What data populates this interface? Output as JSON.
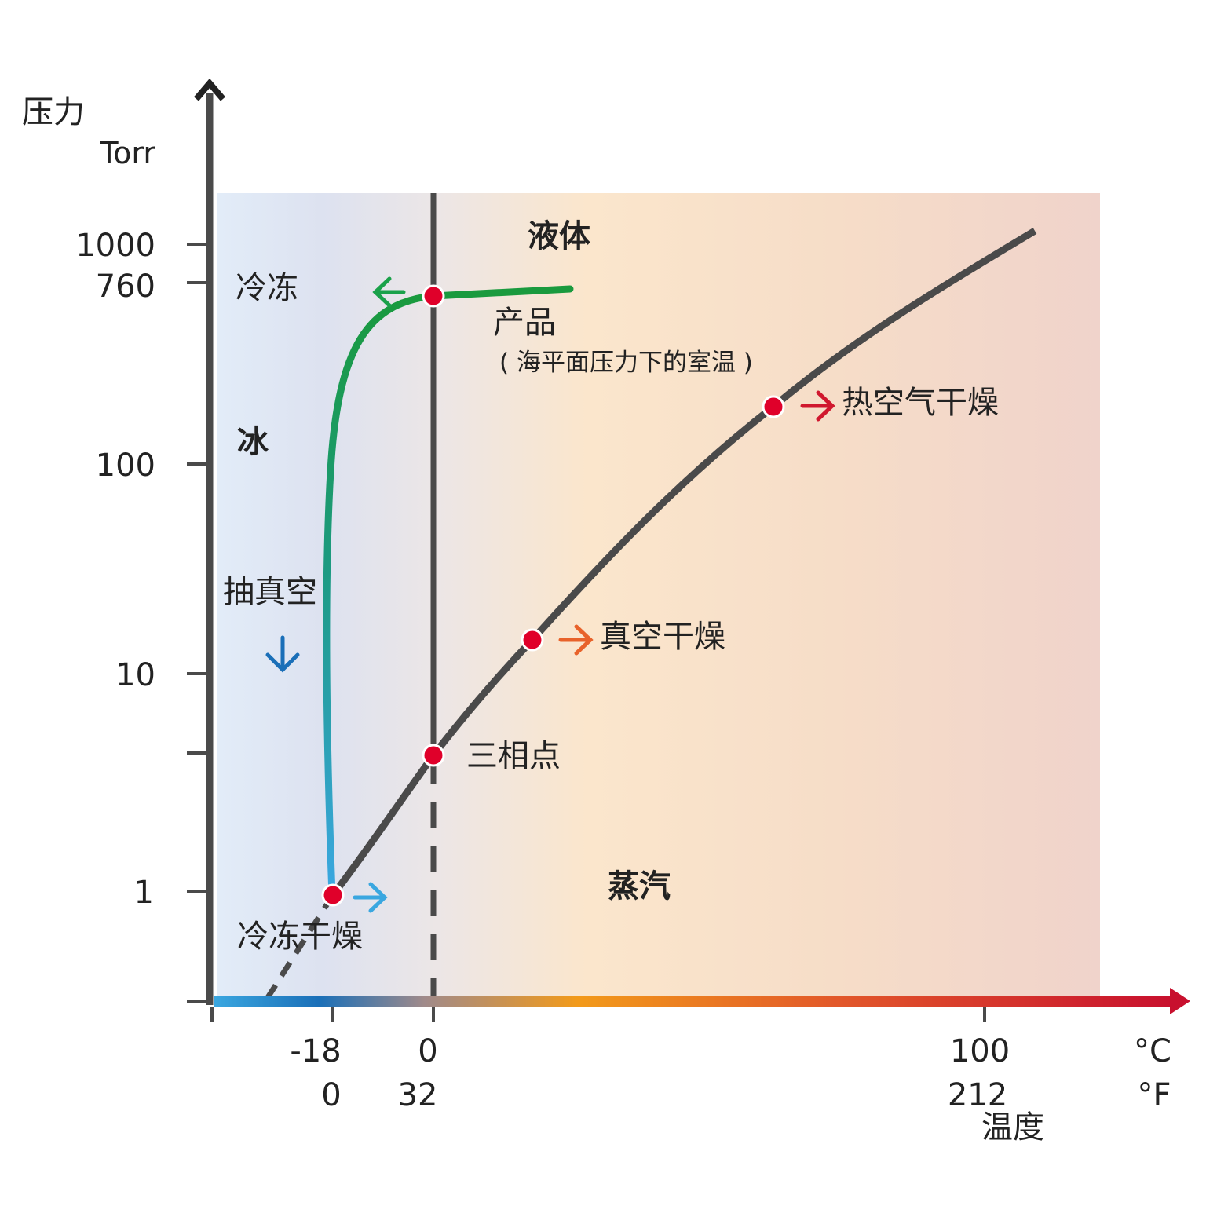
{
  "colors": {
    "axis": "#4a4a4a",
    "vapor_curve": "#4a4a4a",
    "point": "#e0002a",
    "freeze_arrow": "#1aa14a",
    "vacuum_arrow": "#1a6fb8",
    "freeze_dry_arrow": "#3aa7e0",
    "vacuum_dry_arrow": "#e8622a",
    "hot_air_arrow": "#d0182e",
    "bg_cold": "#e2ecf8",
    "bg_warm": "#fbe6cc",
    "bg_hot": "#f0d3cb",
    "temp_axis_cold": "#3aa7e0",
    "temp_axis_mid": "#f29a1a",
    "temp_axis_hot": "#c8102e"
  },
  "y_axis": {
    "title": "压力",
    "unit": "Torr",
    "scale": "log",
    "ticks": [
      "1000",
      "760",
      "100",
      "10",
      "1"
    ]
  },
  "x_axis": {
    "title": "温度",
    "unit_c": "°C",
    "unit_f": "°F",
    "ticks_c": [
      "-18",
      "0",
      "100"
    ],
    "ticks_f": [
      "0",
      "32",
      "212"
    ]
  },
  "regions": {
    "liquid": "液体",
    "ice": "冰",
    "vapor": "蒸汽"
  },
  "labels": {
    "freeze": "冷冻",
    "product": "产品",
    "product_note": "( 海平面压力下的室温 )",
    "vacuum": "抽真空",
    "triple_point": "三相点",
    "freeze_dry": "冷冻干燥",
    "vacuum_dry": "真空干燥",
    "hot_air_dry": "热空气干燥"
  },
  "icons": {
    "freeze_arrow": "arrow-left-icon",
    "vacuum_arrow": "arrow-down-icon",
    "freeze_dry_arrow": "arrow-right-icon",
    "vacuum_dry_arrow": "arrow-right-icon",
    "hot_air_arrow": "arrow-right-icon",
    "y_axis_arrow": "arrow-up-icon",
    "x_axis_arrow": "arrow-right-icon"
  }
}
